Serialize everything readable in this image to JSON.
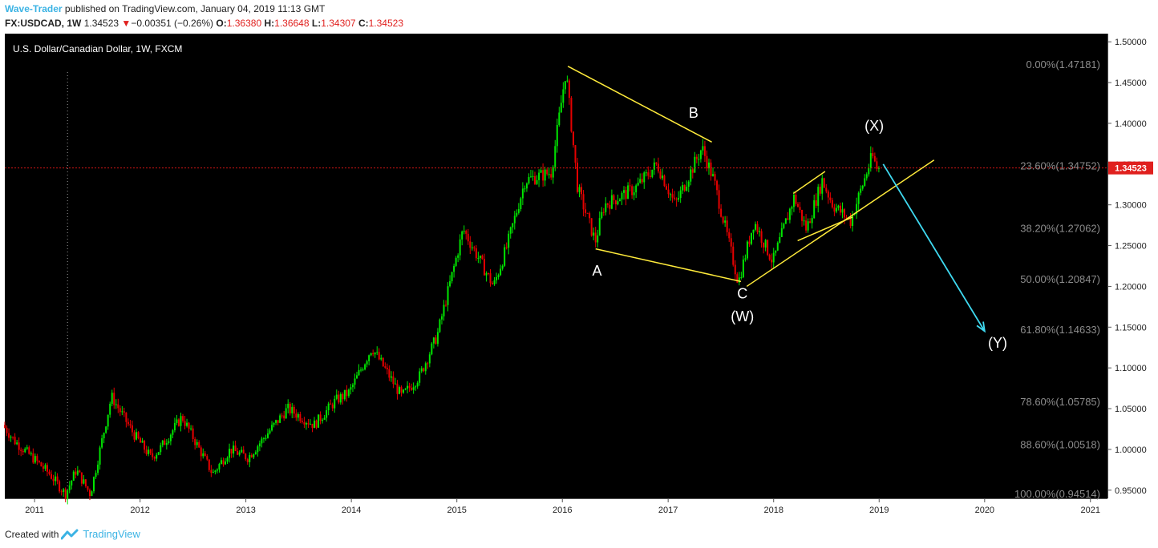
{
  "header": {
    "author": "Wave-Trader",
    "published_text": " published on TradingView.com, January 04, 2019 11:13 GMT",
    "symbol": "FX:USDCAD, 1W",
    "last": "1.34523",
    "change_arrow": "▼",
    "change": "−0.00351 (−0.26%)",
    "open_label": "O:",
    "open": "1.36380",
    "high_label": "H:",
    "high": "1.36648",
    "low_label": "L:",
    "low": "1.34307",
    "close_label": "C:",
    "close": "1.34523"
  },
  "footer": {
    "created_with": "Created with",
    "brand": "TradingView"
  },
  "colors": {
    "background": "#000000",
    "up_candle": "#00e600",
    "down_candle": "#e60000",
    "trend_lines": "#ffeb3b",
    "projection_arrow": "#3fd9f0",
    "fib_text": "#8c8c8c",
    "price_line": "#d11414",
    "price_tag": "#e0201e"
  },
  "chart_data": {
    "type": "candlestick",
    "title": "U.S. Dollar/Canadian Dollar, 1W, FXCM",
    "y_axis": {
      "range": [
        0.94,
        1.51
      ],
      "ticks": [
        "1.50000",
        "1.45000",
        "1.40000",
        "1.35000",
        "1.30000",
        "1.25000",
        "1.20000",
        "1.15000",
        "1.10000",
        "1.05000",
        "1.00000",
        "0.95000"
      ],
      "position": "right"
    },
    "x_axis": {
      "range": [
        "2010-09-20",
        "2021-03-01"
      ],
      "ticks": [
        {
          "label": "2011",
          "date": "2011-01-01"
        },
        {
          "label": "2012",
          "date": "2012-01-01"
        },
        {
          "label": "2013",
          "date": "2013-01-01"
        },
        {
          "label": "2014",
          "date": "2014-01-01"
        },
        {
          "label": "2015",
          "date": "2015-01-01"
        },
        {
          "label": "2016",
          "date": "2016-01-01"
        },
        {
          "label": "2017",
          "date": "2017-01-01"
        },
        {
          "label": "2018",
          "date": "2018-01-01"
        },
        {
          "label": "2019",
          "date": "2019-01-01"
        },
        {
          "label": "2020",
          "date": "2020-01-01"
        },
        {
          "label": "2021",
          "date": "2021-01-01"
        }
      ]
    },
    "grid": false,
    "price_path": [
      [
        "2010-09-20",
        1.03
      ],
      [
        "2010-11-01",
        1.01
      ],
      [
        "2011-01-01",
        0.99
      ],
      [
        "2011-03-01",
        0.97
      ],
      [
        "2011-04-25",
        0.945
      ],
      [
        "2011-06-01",
        0.975
      ],
      [
        "2011-07-20",
        0.945
      ],
      [
        "2011-10-01",
        1.065
      ],
      [
        "2011-12-15",
        1.02
      ],
      [
        "2012-02-15",
        0.99
      ],
      [
        "2012-03-15",
        1.0
      ],
      [
        "2012-06-01",
        1.04
      ],
      [
        "2012-09-15",
        0.97
      ],
      [
        "2012-11-15",
        1.0
      ],
      [
        "2013-01-15",
        0.99
      ],
      [
        "2013-06-01",
        1.05
      ],
      [
        "2013-09-01",
        1.03
      ],
      [
        "2013-11-15",
        1.06
      ],
      [
        "2014-01-01",
        1.07
      ],
      [
        "2014-03-20",
        1.125
      ],
      [
        "2014-07-01",
        1.065
      ],
      [
        "2014-09-01",
        1.09
      ],
      [
        "2014-11-01",
        1.14
      ],
      [
        "2015-01-30",
        1.27
      ],
      [
        "2015-05-15",
        1.2
      ],
      [
        "2015-07-01",
        1.25
      ],
      [
        "2015-09-01",
        1.33
      ],
      [
        "2015-12-01",
        1.34
      ],
      [
        "2016-01-20",
        1.465
      ],
      [
        "2016-03-01",
        1.32
      ],
      [
        "2016-05-01",
        1.255
      ],
      [
        "2016-06-01",
        1.3
      ],
      [
        "2016-09-15",
        1.32
      ],
      [
        "2016-12-01",
        1.35
      ],
      [
        "2017-02-01",
        1.3
      ],
      [
        "2017-05-05",
        1.37
      ],
      [
        "2017-06-15",
        1.33
      ],
      [
        "2017-09-08",
        1.205
      ],
      [
        "2017-11-01",
        1.28
      ],
      [
        "2018-01-05",
        1.23
      ],
      [
        "2018-03-20",
        1.31
      ],
      [
        "2018-05-01",
        1.27
      ],
      [
        "2018-06-25",
        1.33
      ],
      [
        "2018-08-01",
        1.3
      ],
      [
        "2018-10-01",
        1.28
      ],
      [
        "2018-12-15",
        1.36
      ],
      [
        "2018-12-31",
        1.3452
      ]
    ],
    "last_price": "1.34523",
    "fibonacci": [
      {
        "label": "0.00%(1.47181)",
        "value": 1.47181
      },
      {
        "label": "23.60%(1.34752)",
        "value": 1.34752
      },
      {
        "label": "38.20%(1.27062)",
        "value": 1.27062
      },
      {
        "label": "50.00%(1.20847)",
        "value": 1.20847
      },
      {
        "label": "61.80%(1.14633)",
        "value": 1.14633
      },
      {
        "label": "78.60%(1.05785)",
        "value": 1.05785
      },
      {
        "label": "88.60%(1.00518)",
        "value": 1.00518
      },
      {
        "label": "100.00%(0.94514)",
        "value": 0.94514
      }
    ],
    "trend_lines": [
      {
        "from": [
          "2016-01-20",
          1.47
        ],
        "to": [
          "2017-06-01",
          1.377
        ]
      },
      {
        "from": [
          "2016-04-25",
          1.246
        ],
        "to": [
          "2017-09-10",
          1.206
        ]
      },
      {
        "from": [
          "2017-09-30",
          1.2
        ],
        "to": [
          "2019-07-10",
          1.355
        ]
      },
      {
        "from": [
          "2018-03-10",
          1.314
        ],
        "to": [
          "2018-06-28",
          1.341
        ]
      },
      {
        "from": [
          "2018-03-25",
          1.256
        ],
        "to": [
          "2018-10-01",
          1.285
        ]
      }
    ],
    "projection_arrow": {
      "from": [
        "2019-01-15",
        1.35
      ],
      "to": [
        "2020-01-01",
        1.145
      ]
    },
    "wave_labels": [
      {
        "text": "A",
        "date": "2016-04-30",
        "price": 1.213
      },
      {
        "text": "B",
        "date": "2017-03-30",
        "price": 1.407
      },
      {
        "text": "C",
        "date": "2017-09-15",
        "price": 1.185
      },
      {
        "text": "(W)",
        "date": "2017-09-15",
        "price": 1.157
      },
      {
        "text": "(X)",
        "date": "2018-12-15",
        "price": 1.391
      },
      {
        "text": "(Y)",
        "date": "2020-02-15",
        "price": 1.125
      }
    ]
  }
}
